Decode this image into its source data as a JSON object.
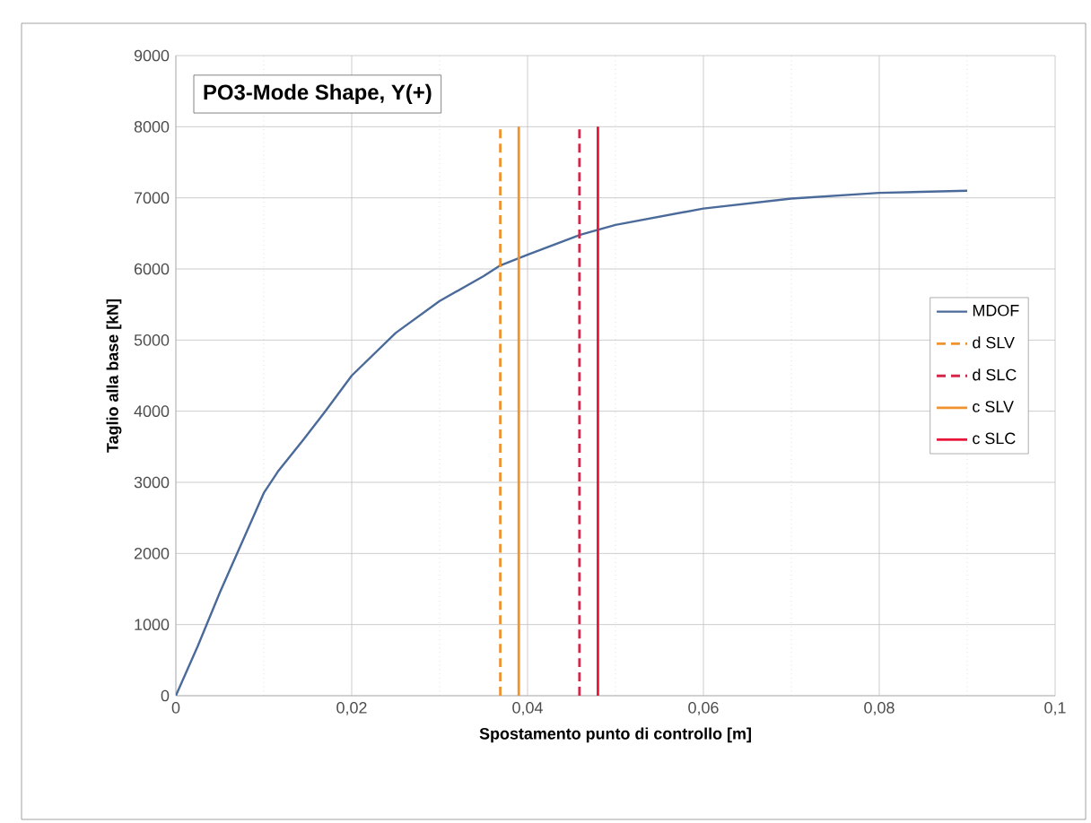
{
  "chart_data": {
    "type": "line",
    "title": "PO3-Mode Shape, Y(+)",
    "xlabel": "Spostamento punto di controllo [m]",
    "ylabel": "Taglio alla base [kN]",
    "xlim": [
      0,
      0.1
    ],
    "ylim": [
      0,
      9000
    ],
    "xticks": [
      0,
      {
        "value": 0.02,
        "label": "0,02"
      },
      {
        "value": 0.04,
        "label": "0,04"
      },
      {
        "value": 0.06,
        "label": "0,06"
      },
      {
        "value": 0.08,
        "label": "0,08"
      },
      {
        "value": 0.1,
        "label": "0,1"
      }
    ],
    "yticks": [
      0,
      1000,
      2000,
      3000,
      4000,
      5000,
      6000,
      7000,
      8000,
      9000
    ],
    "grid": true,
    "legend": "right",
    "marker": "none",
    "series": [
      {
        "name": "MDOF",
        "color": "#4a6a9a",
        "line_style": "solid",
        "x": [
          0,
          0.0025,
          0.005,
          0.0075,
          0.01,
          0.0116,
          0.0145,
          0.017,
          0.02,
          0.025,
          0.03,
          0.035,
          0.0369,
          0.04,
          0.046,
          0.05,
          0.06,
          0.07,
          0.08,
          0.09
        ],
        "values": [
          0,
          700,
          1450,
          2150,
          2850,
          3150,
          3600,
          4000,
          4500,
          5100,
          5550,
          5900,
          6050,
          6200,
          6480,
          6620,
          6850,
          6990,
          7070,
          7100
        ]
      },
      {
        "name": "d SLV",
        "color": "#f0922e",
        "line_style": "dashed",
        "x": [
          0.0369,
          0.0369
        ],
        "values": [
          0,
          8000
        ]
      },
      {
        "name": "d SLC",
        "color": "#d6254a",
        "line_style": "dashed",
        "x": [
          0.0459,
          0.0459
        ],
        "values": [
          0,
          8000
        ]
      },
      {
        "name": "c SLV",
        "color": "#f0922e",
        "line_style": "solid",
        "x": [
          0.039,
          0.039
        ],
        "values": [
          0,
          8000
        ]
      },
      {
        "name": "c SLC",
        "color": "#e8173a",
        "line_style": "solid",
        "x": [
          0.048,
          0.048
        ],
        "values": [
          0,
          8000
        ]
      }
    ]
  }
}
